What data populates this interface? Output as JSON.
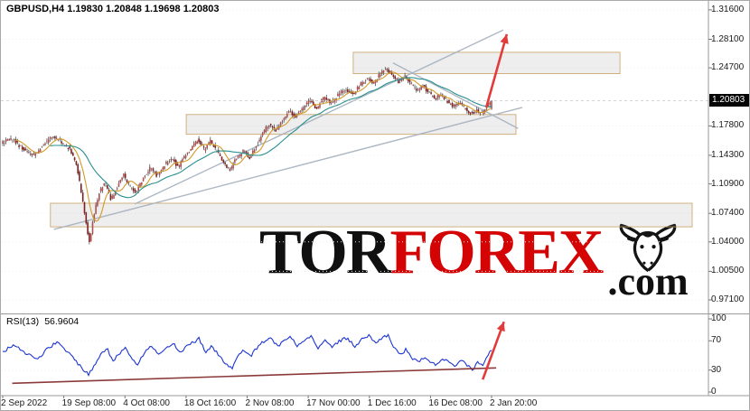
{
  "header": {
    "symbol_label": "GBPUSD,H4 1.19830 1.20848 1.19698 1.20803"
  },
  "watermark": {
    "tor": "TOR",
    "forex": "FOREX",
    "dotcom": ".com",
    "color_accent": "#d40404",
    "color_dark": "#101010",
    "bull_icon": "bull-head-icon"
  },
  "price_axis": {
    "current_label": "1.20803",
    "labels": [
      "1.31600",
      "1.28100",
      "1.24700",
      "1.17800",
      "1.14300",
      "1.10900",
      "1.07400",
      "1.04000",
      "1.00500",
      "0.97100"
    ]
  },
  "time_axis": {
    "labels": [
      "2 Sep 2022",
      "19 Sep 08:00",
      "4 Oct 08:00",
      "18 Oct 16:00",
      "2 Nov 08:00",
      "17 Nov 00:00",
      "1 Dec 16:00",
      "16 Dec 08:00",
      "2 Jan 20:00"
    ]
  },
  "rsi_panel": {
    "name_label": "RSI(13)",
    "value_label": "56.9604",
    "scale_labels": [
      "100",
      "70",
      "30",
      "0"
    ]
  },
  "chart_data": {
    "type": "candlestick",
    "title": "GBPUSD H4 forecast chart with RSI(13)",
    "symbol": "GBPUSD",
    "timeframe": "H4",
    "last_bar": {
      "open": 1.1983,
      "high": 1.20848,
      "low": 1.19698,
      "close": 1.20803
    },
    "current_price": 1.20803,
    "price_range": {
      "min": 0.956,
      "max": 1.3245
    },
    "price_gridlines": [
      1.316,
      1.281,
      1.247,
      1.178,
      1.143,
      1.109,
      1.074,
      1.04,
      1.005,
      0.971
    ],
    "x_labels": [
      "2 Sep 2022",
      "19 Sep 08:00",
      "4 Oct 08:00",
      "18 Oct 16:00",
      "2 Nov 08:00",
      "17 Nov 00:00",
      "1 Dec 16:00",
      "16 Dec 08:00",
      "2 Jan 20:00"
    ],
    "candle_colors": {
      "bull": "#b05050",
      "bear": "#7e2020",
      "wick": "#3a3a3a"
    },
    "price_path": [
      [
        0.0,
        1.157
      ],
      [
        0.022,
        1.163
      ],
      [
        0.045,
        1.15
      ],
      [
        0.068,
        1.143
      ],
      [
        0.085,
        1.155
      ],
      [
        0.105,
        1.166
      ],
      [
        0.125,
        1.158
      ],
      [
        0.14,
        1.15
      ],
      [
        0.155,
        1.13
      ],
      [
        0.168,
        1.085
      ],
      [
        0.18,
        1.038
      ],
      [
        0.19,
        1.072
      ],
      [
        0.2,
        1.098
      ],
      [
        0.212,
        1.112
      ],
      [
        0.225,
        1.09
      ],
      [
        0.238,
        1.105
      ],
      [
        0.25,
        1.12
      ],
      [
        0.262,
        1.108
      ],
      [
        0.275,
        1.098
      ],
      [
        0.29,
        1.115
      ],
      [
        0.305,
        1.128
      ],
      [
        0.32,
        1.118
      ],
      [
        0.335,
        1.132
      ],
      [
        0.35,
        1.14
      ],
      [
        0.362,
        1.128
      ],
      [
        0.375,
        1.142
      ],
      [
        0.39,
        1.152
      ],
      [
        0.402,
        1.162
      ],
      [
        0.415,
        1.15
      ],
      [
        0.428,
        1.16
      ],
      [
        0.442,
        1.148
      ],
      [
        0.455,
        1.135
      ],
      [
        0.468,
        1.125
      ],
      [
        0.48,
        1.138
      ],
      [
        0.495,
        1.148
      ],
      [
        0.508,
        1.14
      ],
      [
        0.522,
        1.155
      ],
      [
        0.535,
        1.17
      ],
      [
        0.548,
        1.18
      ],
      [
        0.562,
        1.172
      ],
      [
        0.575,
        1.185
      ],
      [
        0.59,
        1.195
      ],
      [
        0.602,
        1.188
      ],
      [
        0.618,
        1.2
      ],
      [
        0.632,
        1.208
      ],
      [
        0.645,
        1.198
      ],
      [
        0.66,
        1.212
      ],
      [
        0.675,
        1.205
      ],
      [
        0.69,
        1.215
      ],
      [
        0.705,
        1.222
      ],
      [
        0.72,
        1.215
      ],
      [
        0.735,
        1.228
      ],
      [
        0.75,
        1.235
      ],
      [
        0.762,
        1.228
      ],
      [
        0.775,
        1.24
      ],
      [
        0.788,
        1.246
      ],
      [
        0.8,
        1.238
      ],
      [
        0.812,
        1.23
      ],
      [
        0.825,
        1.238
      ],
      [
        0.838,
        1.228
      ],
      [
        0.85,
        1.22
      ],
      [
        0.862,
        1.226
      ],
      [
        0.875,
        1.218
      ],
      [
        0.888,
        1.21
      ],
      [
        0.9,
        1.216
      ],
      [
        0.912,
        1.208
      ],
      [
        0.925,
        1.2
      ],
      [
        0.938,
        1.206
      ],
      [
        0.95,
        1.198
      ],
      [
        0.962,
        1.192
      ],
      [
        0.972,
        1.197
      ],
      [
        0.982,
        1.193
      ],
      [
        0.992,
        1.2
      ],
      [
        1.0,
        1.208
      ]
    ],
    "moving_averages": [
      {
        "name": "MA fast",
        "period": 9,
        "color": "#d29a2a"
      },
      {
        "name": "MA slow",
        "period": 30,
        "color": "#2a8f8f"
      }
    ],
    "zones": [
      {
        "name": "resistance-zone",
        "x1": 0.498,
        "x2": 0.875,
        "price1": 1.24,
        "price2": 1.2655
      },
      {
        "name": "support-zone-mid",
        "x1": 0.262,
        "x2": 0.728,
        "price1": 1.168,
        "price2": 1.1915
      },
      {
        "name": "support-zone-low",
        "x1": 0.07,
        "x2": 0.977,
        "price1": 1.058,
        "price2": 1.086
      }
    ],
    "trendlines": [
      {
        "name": "channel-lower",
        "x1": 0.075,
        "price1": 1.055,
        "x2": 0.737,
        "price2": 1.2
      },
      {
        "name": "channel-upper",
        "x1": 0.189,
        "price1": 1.085,
        "x2": 0.71,
        "price2": 1.292
      },
      {
        "name": "correction-resistance",
        "x1": 0.554,
        "price1": 1.253,
        "x2": 0.731,
        "price2": 1.175
      }
    ],
    "forecast_arrows": [
      {
        "panel": "price",
        "x1": 0.686,
        "y1": 1.2,
        "x2": 0.715,
        "y2": 1.287,
        "color": "#e23b3b"
      }
    ],
    "rsi": {
      "period": 13,
      "current": 56.9604,
      "range": [
        0,
        100
      ],
      "levels": [
        30,
        70
      ],
      "line_color": "#1c35d1",
      "path": [
        [
          0.0,
          55
        ],
        [
          0.025,
          65
        ],
        [
          0.05,
          52
        ],
        [
          0.07,
          45
        ],
        [
          0.09,
          58
        ],
        [
          0.11,
          68
        ],
        [
          0.13,
          56
        ],
        [
          0.145,
          47
        ],
        [
          0.16,
          34
        ],
        [
          0.175,
          24
        ],
        [
          0.19,
          38
        ],
        [
          0.2,
          52
        ],
        [
          0.213,
          60
        ],
        [
          0.225,
          42
        ],
        [
          0.238,
          52
        ],
        [
          0.25,
          62
        ],
        [
          0.263,
          48
        ],
        [
          0.275,
          38
        ],
        [
          0.29,
          54
        ],
        [
          0.305,
          63
        ],
        [
          0.32,
          50
        ],
        [
          0.335,
          60
        ],
        [
          0.35,
          66
        ],
        [
          0.363,
          52
        ],
        [
          0.375,
          62
        ],
        [
          0.39,
          68
        ],
        [
          0.402,
          73
        ],
        [
          0.415,
          55
        ],
        [
          0.428,
          63
        ],
        [
          0.442,
          50
        ],
        [
          0.455,
          40
        ],
        [
          0.468,
          32
        ],
        [
          0.48,
          48
        ],
        [
          0.495,
          58
        ],
        [
          0.508,
          50
        ],
        [
          0.522,
          62
        ],
        [
          0.535,
          70
        ],
        [
          0.548,
          75
        ],
        [
          0.562,
          62
        ],
        [
          0.575,
          70
        ],
        [
          0.59,
          76
        ],
        [
          0.602,
          64
        ],
        [
          0.618,
          72
        ],
        [
          0.632,
          76
        ],
        [
          0.645,
          60
        ],
        [
          0.66,
          70
        ],
        [
          0.675,
          62
        ],
        [
          0.69,
          70
        ],
        [
          0.705,
          74
        ],
        [
          0.72,
          62
        ],
        [
          0.735,
          72
        ],
        [
          0.75,
          78
        ],
        [
          0.762,
          66
        ],
        [
          0.775,
          74
        ],
        [
          0.788,
          78
        ],
        [
          0.8,
          62
        ],
        [
          0.812,
          50
        ],
        [
          0.825,
          58
        ],
        [
          0.838,
          46
        ],
        [
          0.85,
          40
        ],
        [
          0.862,
          48
        ],
        [
          0.875,
          42
        ],
        [
          0.888,
          36
        ],
        [
          0.9,
          45
        ],
        [
          0.912,
          40
        ],
        [
          0.925,
          34
        ],
        [
          0.938,
          44
        ],
        [
          0.95,
          37
        ],
        [
          0.962,
          30
        ],
        [
          0.972,
          42
        ],
        [
          0.982,
          35
        ],
        [
          0.992,
          50
        ],
        [
          1.0,
          57
        ]
      ],
      "trendline": {
        "x1": 0.016,
        "v1": 12,
        "x2": 0.7,
        "v2": 33,
        "color": "#8b3a3a"
      },
      "arrow": {
        "x1": 0.681,
        "v1": 17,
        "x2": 0.711,
        "v2": 96,
        "color": "#e23b3b"
      }
    }
  }
}
